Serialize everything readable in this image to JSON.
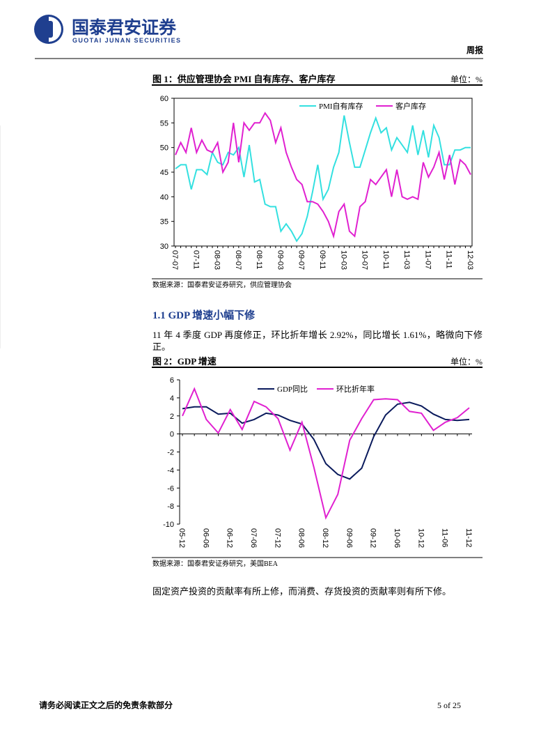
{
  "header": {
    "company_cn": "国泰君安证券",
    "company_en": "GUOTAI JUNAN SECURITIES",
    "report_type": "周报"
  },
  "chart_data": [
    {
      "type": "line",
      "title": "图 1：供应管理协会 PMI 自有库存、客户库存",
      "unit": "单位：%",
      "source": "数据来源：国泰君安证券研究，供应管理协会",
      "categories": [
        "07-07",
        null,
        null,
        null,
        "07-11",
        null,
        null,
        null,
        "08-03",
        null,
        null,
        null,
        "08-07",
        null,
        null,
        null,
        "08-11",
        null,
        null,
        null,
        "09-03",
        null,
        null,
        null,
        "09-07",
        null,
        null,
        null,
        "09-11",
        null,
        null,
        null,
        "10-03",
        null,
        null,
        null,
        "10-07",
        null,
        null,
        null,
        "10-11",
        null,
        null,
        null,
        "11-03",
        null,
        null,
        null,
        "11-07",
        null,
        null,
        null,
        "11-11",
        null,
        null,
        null,
        "12-03"
      ],
      "series": [
        {
          "name": "PMI自有库存",
          "color": "#33e0e0",
          "values": [
            45.7,
            46.5,
            46.5,
            41.5,
            45.5,
            45.5,
            44.5,
            49,
            47,
            46.5,
            49,
            48.5,
            50,
            44,
            50.5,
            43,
            43.5,
            38.5,
            38,
            38,
            33,
            34.5,
            33,
            31,
            32.5,
            36,
            41,
            46.5,
            39.5,
            41.5,
            46,
            49,
            56.5,
            51,
            46,
            46,
            49.5,
            53,
            56,
            53,
            54,
            49.5,
            52,
            50.5,
            49,
            54.5,
            48.5,
            53.5,
            48,
            54.5,
            52,
            46.5,
            46.5,
            49.5,
            49.5,
            50,
            50
          ]
        },
        {
          "name": "客户库存",
          "color": "#e020d0",
          "values": [
            48.5,
            51,
            49,
            54,
            49,
            51.5,
            49.5,
            49,
            51,
            45,
            47,
            55,
            47,
            55,
            53.5,
            55,
            55,
            57,
            55.5,
            51,
            54,
            49,
            46,
            43.5,
            42.5,
            39,
            39,
            38.5,
            37,
            35,
            32,
            37,
            38.5,
            33,
            32,
            38,
            39,
            43.5,
            42.5,
            44,
            45.5,
            40,
            45.5,
            40,
            39.5,
            40,
            39.5,
            47,
            44,
            46,
            49,
            43.5,
            48.5,
            42.5,
            47.5,
            46.5,
            44.5
          ]
        }
      ],
      "ylim": [
        30,
        60
      ],
      "yticks": [
        30,
        35,
        40,
        45,
        50,
        55,
        60
      ],
      "plot_frame": true,
      "legend": "top"
    },
    {
      "type": "line",
      "title": "图 2：GDP 增速",
      "unit": "单位：%",
      "source": "数据来源：国泰君安证券研究，美国BEA",
      "categories": [
        "05-12",
        null,
        "06-06",
        null,
        "06-12",
        null,
        "07-06",
        null,
        "07-12",
        null,
        "08-06",
        null,
        "08-12",
        null,
        "09-06",
        null,
        "09-12",
        null,
        "10-06",
        null,
        "10-12",
        null,
        "11-06",
        null,
        "11-12"
      ],
      "series": [
        {
          "name": "GDP同比",
          "color": "#0a1a5c",
          "values": [
            2.8,
            3.0,
            3.0,
            2.2,
            2.3,
            1.2,
            1.6,
            2.3,
            2.1,
            1.5,
            1.1,
            -0.6,
            -3.3,
            -4.5,
            -5.0,
            -3.8,
            -0.3,
            2.1,
            3.3,
            3.5,
            3.1,
            2.2,
            1.6,
            1.5,
            1.6
          ]
        },
        {
          "name": "环比折年率",
          "color": "#e020d0",
          "values": [
            2.0,
            5.0,
            1.6,
            0.1,
            2.7,
            0.5,
            3.6,
            3.0,
            1.7,
            -1.8,
            1.3,
            -3.7,
            -9.3,
            -6.7,
            -0.7,
            1.7,
            3.8,
            3.9,
            3.8,
            2.5,
            2.3,
            0.4,
            1.3,
            1.8,
            2.9
          ]
        }
      ],
      "ylim": [
        -10,
        6
      ],
      "yticks": [
        -10,
        -8,
        -6,
        -4,
        -2,
        0,
        2,
        4,
        6
      ],
      "plot_frame": false,
      "legend": "top"
    }
  ],
  "section": {
    "heading": "1.1  GDP 增速小幅下修"
  },
  "paragraphs": [
    "11 年 4 季度 GDP 再度修正，环比折年增长 2.92%，同比增长 1.61%，略微向下修正。",
    "固定资产投资的贡献率有所上修，而消费、存货投资的贡献率则有所下修。"
  ],
  "footer": {
    "disclaimer": "请务必阅读正文之后的免责条款部分",
    "page": "5 of 25"
  }
}
